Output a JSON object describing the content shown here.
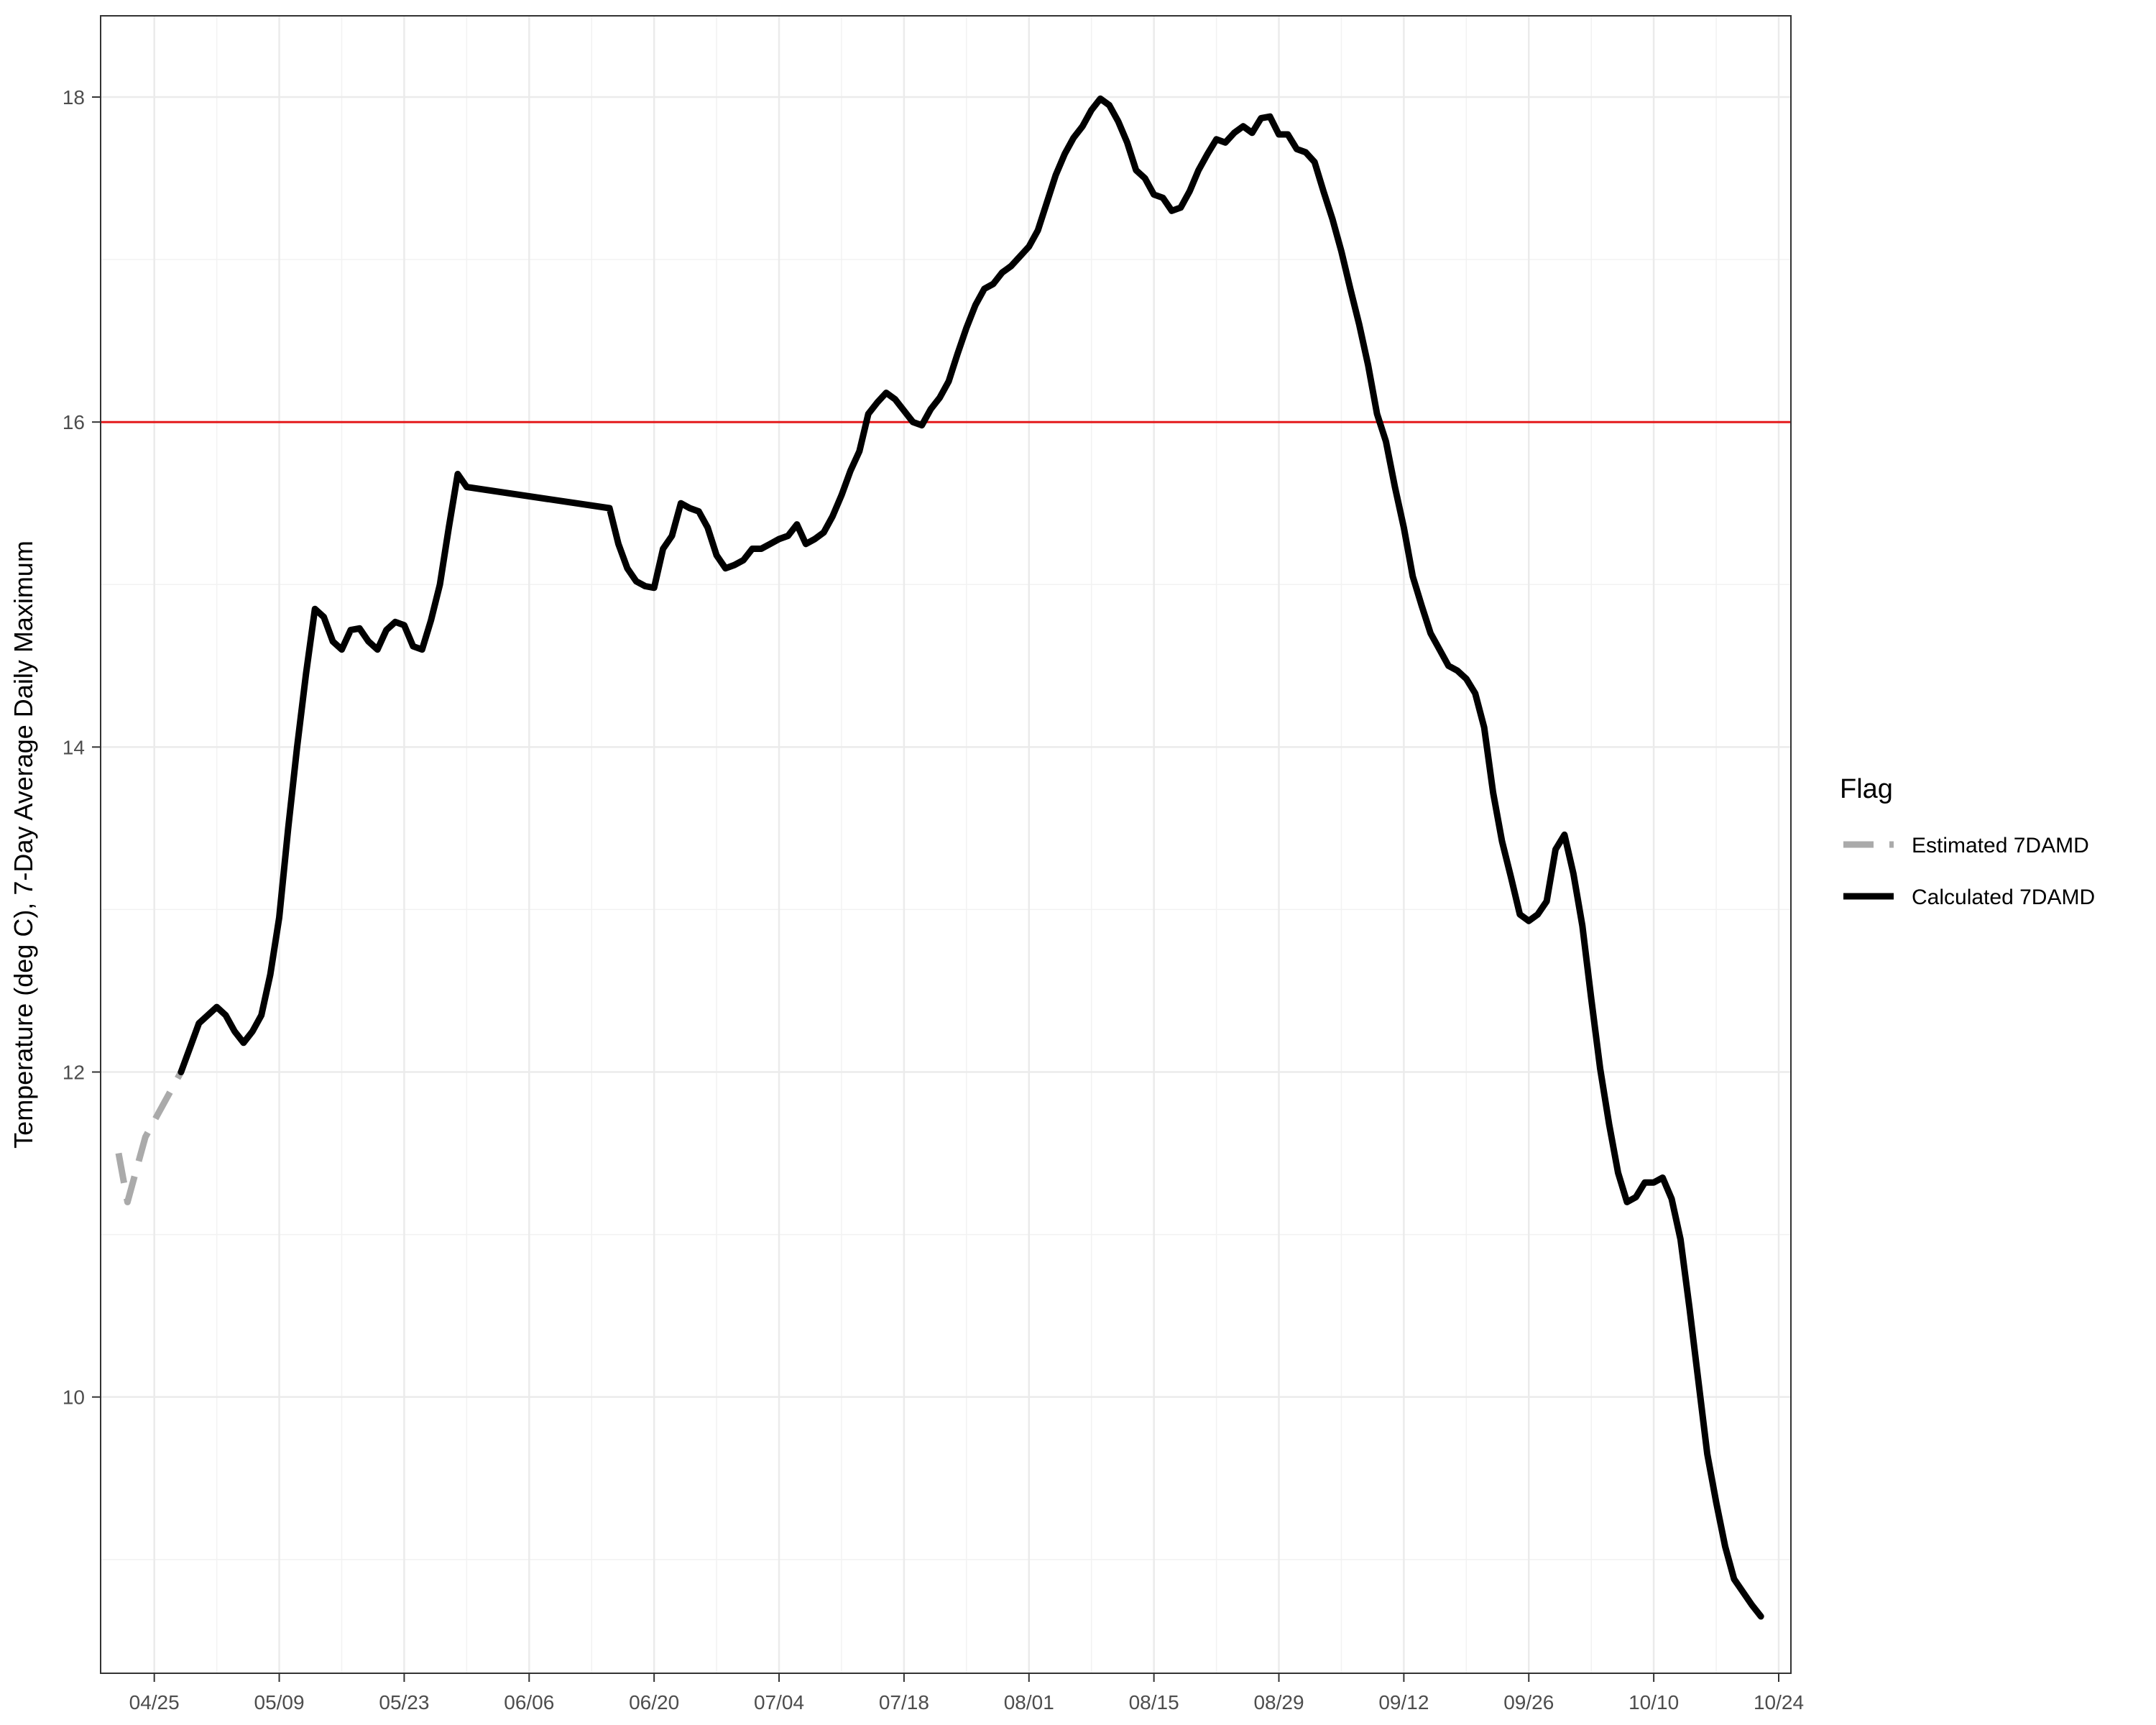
{
  "chart_data": {
    "type": "line",
    "xlabel": "",
    "ylabel": "Temperature (deg C), 7-Day Average Daily Maximum",
    "x_ticks": [
      "04/25",
      "05/09",
      "05/23",
      "06/06",
      "06/20",
      "07/04",
      "07/18",
      "08/01",
      "08/15",
      "08/29",
      "09/12",
      "09/26",
      "10/10",
      "10/24"
    ],
    "y_ticks": [
      10,
      12,
      14,
      16,
      18
    ],
    "ylim": [
      8.3,
      18.5
    ],
    "grid": true,
    "legend_position": "right",
    "legend_title": "Flag",
    "reference_line": {
      "y": 16,
      "color": "#e41a1c"
    },
    "series": [
      {
        "name": "Estimated 7DAMD",
        "color": "#aaaaaa",
        "dashed": true,
        "points": [
          [
            "04/21",
            11.5
          ],
          [
            "04/22",
            11.2
          ],
          [
            "04/23",
            11.4
          ],
          [
            "04/24",
            11.6
          ],
          [
            "04/25",
            11.7
          ],
          [
            "04/26",
            11.8
          ],
          [
            "04/27",
            11.9
          ],
          [
            "04/28",
            12.0
          ]
        ]
      },
      {
        "name": "Calculated 7DAMD",
        "color": "#000000",
        "dashed": false,
        "points": [
          [
            "04/28",
            12.0
          ],
          [
            "04/29",
            12.15
          ],
          [
            "04/30",
            12.3
          ],
          [
            "05/01",
            12.35
          ],
          [
            "05/02",
            12.4
          ],
          [
            "05/03",
            12.35
          ],
          [
            "05/04",
            12.25
          ],
          [
            "05/05",
            12.18
          ],
          [
            "05/06",
            12.25
          ],
          [
            "05/07",
            12.35
          ],
          [
            "05/08",
            12.6
          ],
          [
            "05/09",
            12.95
          ],
          [
            "05/10",
            13.5
          ],
          [
            "05/11",
            14.0
          ],
          [
            "05/12",
            14.45
          ],
          [
            "05/13",
            14.85
          ],
          [
            "05/14",
            14.8
          ],
          [
            "05/15",
            14.65
          ],
          [
            "05/16",
            14.6
          ],
          [
            "05/17",
            14.72
          ],
          [
            "05/18",
            14.73
          ],
          [
            "05/19",
            14.65
          ],
          [
            "05/20",
            14.6
          ],
          [
            "05/21",
            14.72
          ],
          [
            "05/22",
            14.77
          ],
          [
            "05/23",
            14.75
          ],
          [
            "05/24",
            14.62
          ],
          [
            "05/25",
            14.6
          ],
          [
            "05/26",
            14.78
          ],
          [
            "05/27",
            15.0
          ],
          [
            "05/28",
            15.35
          ],
          [
            "05/29",
            15.68
          ],
          [
            "05/30",
            15.6
          ],
          [
            "06/15",
            15.47
          ],
          [
            "06/16",
            15.25
          ],
          [
            "06/17",
            15.1
          ],
          [
            "06/18",
            15.02
          ],
          [
            "06/19",
            14.99
          ],
          [
            "06/20",
            14.98
          ],
          [
            "06/21",
            15.22
          ],
          [
            "06/22",
            15.3
          ],
          [
            "06/23",
            15.5
          ],
          [
            "06/24",
            15.47
          ],
          [
            "06/25",
            15.45
          ],
          [
            "06/26",
            15.35
          ],
          [
            "06/27",
            15.18
          ],
          [
            "06/28",
            15.1
          ],
          [
            "06/29",
            15.12
          ],
          [
            "06/30",
            15.15
          ],
          [
            "07/01",
            15.22
          ],
          [
            "07/02",
            15.22
          ],
          [
            "07/03",
            15.25
          ],
          [
            "07/04",
            15.28
          ],
          [
            "07/05",
            15.3
          ],
          [
            "07/06",
            15.37
          ],
          [
            "07/07",
            15.25
          ],
          [
            "07/08",
            15.28
          ],
          [
            "07/09",
            15.32
          ],
          [
            "07/10",
            15.42
          ],
          [
            "07/11",
            15.55
          ],
          [
            "07/12",
            15.7
          ],
          [
            "07/13",
            15.82
          ],
          [
            "07/14",
            16.05
          ],
          [
            "07/15",
            16.12
          ],
          [
            "07/16",
            16.18
          ],
          [
            "07/17",
            16.14
          ],
          [
            "07/18",
            16.07
          ],
          [
            "07/19",
            16.0
          ],
          [
            "07/20",
            15.98
          ],
          [
            "07/21",
            16.08
          ],
          [
            "07/22",
            16.15
          ],
          [
            "07/23",
            16.25
          ],
          [
            "07/24",
            16.42
          ],
          [
            "07/25",
            16.58
          ],
          [
            "07/26",
            16.72
          ],
          [
            "07/27",
            16.82
          ],
          [
            "07/28",
            16.85
          ],
          [
            "07/29",
            16.92
          ],
          [
            "07/30",
            16.96
          ],
          [
            "07/31",
            17.02
          ],
          [
            "08/01",
            17.08
          ],
          [
            "08/02",
            17.18
          ],
          [
            "08/03",
            17.35
          ],
          [
            "08/04",
            17.52
          ],
          [
            "08/05",
            17.65
          ],
          [
            "08/06",
            17.75
          ],
          [
            "08/07",
            17.82
          ],
          [
            "08/08",
            17.92
          ],
          [
            "08/09",
            17.99
          ],
          [
            "08/10",
            17.95
          ],
          [
            "08/11",
            17.85
          ],
          [
            "08/12",
            17.72
          ],
          [
            "08/13",
            17.55
          ],
          [
            "08/14",
            17.5
          ],
          [
            "08/15",
            17.4
          ],
          [
            "08/16",
            17.38
          ],
          [
            "08/17",
            17.3
          ],
          [
            "08/18",
            17.32
          ],
          [
            "08/19",
            17.42
          ],
          [
            "08/20",
            17.55
          ],
          [
            "08/21",
            17.65
          ],
          [
            "08/22",
            17.74
          ],
          [
            "08/23",
            17.72
          ],
          [
            "08/24",
            17.78
          ],
          [
            "08/25",
            17.82
          ],
          [
            "08/26",
            17.78
          ],
          [
            "08/27",
            17.87
          ],
          [
            "08/28",
            17.88
          ],
          [
            "08/29",
            17.77
          ],
          [
            "08/30",
            17.77
          ],
          [
            "08/31",
            17.68
          ],
          [
            "09/01",
            17.66
          ],
          [
            "09/02",
            17.6
          ],
          [
            "09/03",
            17.42
          ],
          [
            "09/04",
            17.25
          ],
          [
            "09/05",
            17.05
          ],
          [
            "09/06",
            16.82
          ],
          [
            "09/07",
            16.6
          ],
          [
            "09/08",
            16.35
          ],
          [
            "09/09",
            16.05
          ],
          [
            "09/10",
            15.88
          ],
          [
            "09/11",
            15.6
          ],
          [
            "09/12",
            15.35
          ],
          [
            "09/13",
            15.05
          ],
          [
            "09/14",
            14.87
          ],
          [
            "09/15",
            14.7
          ],
          [
            "09/16",
            14.6
          ],
          [
            "09/17",
            14.5
          ],
          [
            "09/18",
            14.47
          ],
          [
            "09/19",
            14.42
          ],
          [
            "09/20",
            14.33
          ],
          [
            "09/21",
            14.12
          ],
          [
            "09/22",
            13.72
          ],
          [
            "09/23",
            13.42
          ],
          [
            "09/24",
            13.2
          ],
          [
            "09/25",
            12.97
          ],
          [
            "09/26",
            12.93
          ],
          [
            "09/27",
            12.97
          ],
          [
            "09/28",
            13.05
          ],
          [
            "09/29",
            13.37
          ],
          [
            "09/30",
            13.46
          ],
          [
            "10/01",
            13.22
          ],
          [
            "10/02",
            12.9
          ],
          [
            "10/03",
            12.45
          ],
          [
            "10/04",
            12.02
          ],
          [
            "10/05",
            11.68
          ],
          [
            "10/06",
            11.38
          ],
          [
            "10/07",
            11.2
          ],
          [
            "10/08",
            11.23
          ],
          [
            "10/09",
            11.32
          ],
          [
            "10/10",
            11.32
          ],
          [
            "10/11",
            11.35
          ],
          [
            "10/12",
            11.22
          ],
          [
            "10/13",
            10.97
          ],
          [
            "10/14",
            10.55
          ],
          [
            "10/15",
            10.1
          ],
          [
            "10/16",
            9.65
          ],
          [
            "10/17",
            9.35
          ],
          [
            "10/18",
            9.08
          ],
          [
            "10/19",
            8.88
          ],
          [
            "10/20",
            8.8
          ],
          [
            "10/21",
            8.72
          ],
          [
            "10/22",
            8.65
          ]
        ]
      }
    ]
  }
}
